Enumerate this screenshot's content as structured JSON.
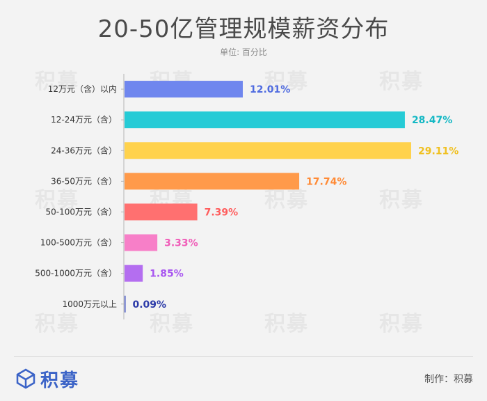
{
  "header": {
    "title": "20-50亿管理规模薪资分布",
    "unit": "单位: 百分比"
  },
  "watermark": "积募",
  "footer": {
    "logo_text": "积募",
    "credit": "制作：积募"
  },
  "chart_data": {
    "type": "bar",
    "orientation": "horizontal",
    "title": "20-50亿管理规模薪资分布",
    "subtitle": "单位: 百分比",
    "categories": [
      "12万元（含）以内",
      "12-24万元（含）",
      "24-36万元（含）",
      "36-50万元（含）",
      "50-100万元（含）",
      "100-500万元（含）",
      "500-1000万元（含）",
      "1000万元以上"
    ],
    "values": [
      12.01,
      28.47,
      29.11,
      17.74,
      7.39,
      3.33,
      1.85,
      0.09
    ],
    "labels": [
      "12.01%",
      "28.47%",
      "29.11%",
      "17.74%",
      "7.39%",
      "3.33%",
      "1.85%",
      "0.09%"
    ],
    "colors": [
      "#6f86ee",
      "#26cbd6",
      "#ffd24c",
      "#ff9a4a",
      "#ff7070",
      "#f77fc8",
      "#b46ef0",
      "#3d4fc2"
    ],
    "label_colors": [
      "#4f6be0",
      "#14b8c4",
      "#f0c020",
      "#ff8a35",
      "#ff5c5c",
      "#f05cb8",
      "#a855f0",
      "#2b3aa8"
    ],
    "xlim": [
      0,
      29.11
    ],
    "grid": false,
    "legend": "none"
  }
}
